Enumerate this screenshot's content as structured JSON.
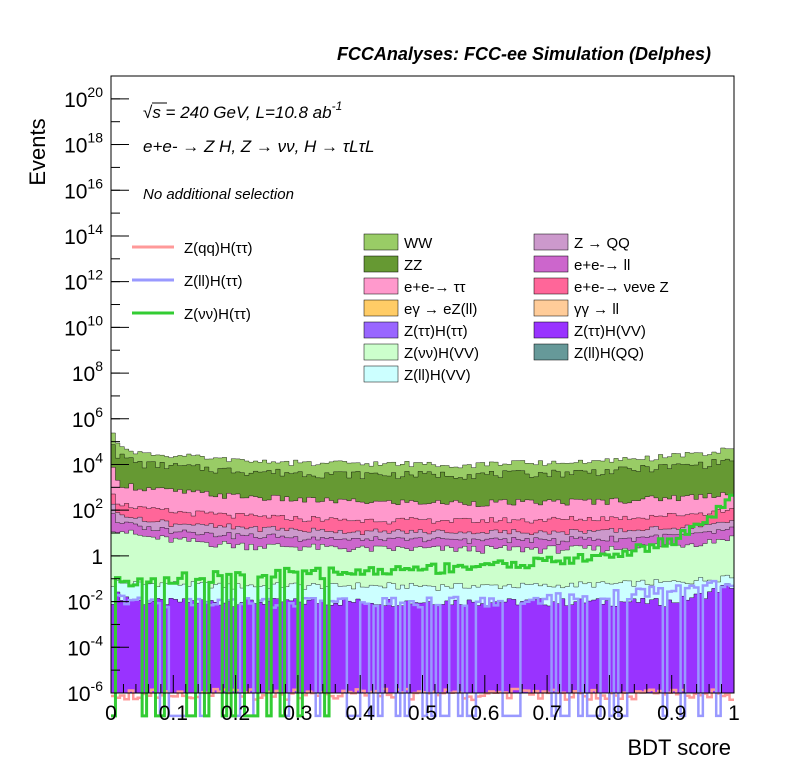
{
  "header": {
    "title": "FCCAnalyses: FCC-ee Simulation (Delphes)"
  },
  "annotations": {
    "line1": "√s = 240 GeV, L=10.8 ab -1",
    "line2": "e+e- → Z H, Z → νν, H → τLτL",
    "line3": "No additional selection"
  },
  "chart_data": {
    "type": "area",
    "title": "FCCAnalyses: FCC-ee Simulation (Delphes)",
    "xlabel": "BDT score",
    "ylabel": "Events",
    "xlim": [
      0,
      1
    ],
    "ylim": [
      1e-06,
      1e+21
    ],
    "yscale": "log",
    "x_ticks": [
      "0",
      "0.1",
      "0.2",
      "0.3",
      "0.4",
      "0.5",
      "0.6",
      "0.7",
      "0.8",
      "0.9",
      "1"
    ],
    "y_ticks": [
      "10^-6",
      "10^-4",
      "10^-2",
      "1",
      "10^2",
      "10^4",
      "10^6",
      "10^8",
      "10^10",
      "10^12",
      "10^14",
      "10^16",
      "10^18",
      "10^20"
    ],
    "x": [
      0.0,
      0.01,
      0.05,
      0.1,
      0.2,
      0.3,
      0.4,
      0.5,
      0.6,
      0.7,
      0.8,
      0.9,
      0.95,
      0.99
    ],
    "stacked_backgrounds": [
      {
        "name": "WW",
        "color": "#99cc66",
        "values": [
          400000,
          50000,
          20000,
          15000,
          10000,
          8000,
          7000,
          7000,
          7000,
          7500,
          9000,
          15000,
          20000,
          30000
        ]
      },
      {
        "name": "ZZ",
        "color": "#669933",
        "values": [
          200000,
          25000,
          10000,
          8000,
          5000,
          4000,
          3500,
          3500,
          3500,
          4000,
          5000,
          8000,
          10000,
          15000
        ]
      },
      {
        "name": "e+e- → ττ",
        "color": "#ff99cc",
        "values": [
          10000,
          1500,
          800,
          600,
          350,
          250,
          200,
          180,
          180,
          190,
          220,
          300,
          350,
          500
        ]
      },
      {
        "name": "e+e- → νeνe Z",
        "color": "#ff6699",
        "values": [
          1000,
          150,
          80,
          60,
          40,
          30,
          25,
          25,
          25,
          28,
          32,
          45,
          55,
          70
        ]
      },
      {
        "name": "Z → QQ",
        "color": "#cc99cc",
        "values": [
          300,
          40,
          20,
          15,
          10,
          8,
          6,
          6,
          6,
          6,
          7,
          9,
          11,
          15
        ]
      },
      {
        "name": "e+e- → ll",
        "color": "#cc66cc",
        "values": [
          150,
          20,
          10,
          8,
          5,
          4,
          3,
          3,
          3,
          3,
          3.5,
          4.5,
          6,
          8
        ]
      },
      {
        "name": "Z(νν)H(VV)",
        "color": "#ccffcc",
        "values": [
          20,
          15,
          7,
          5,
          3,
          2.5,
          2,
          2,
          2,
          2,
          2,
          3,
          4,
          6
        ]
      },
      {
        "name": "Z(ll)H(VV)",
        "color": "#ccffff",
        "values": [
          0.05,
          0.05,
          0.05,
          0.05,
          0.04,
          0.04,
          0.04,
          0.04,
          0.04,
          0.04,
          0.05,
          0.06,
          0.07,
          0.08
        ]
      },
      {
        "name": "Z(ττ)H(VV)",
        "color": "#9933ff",
        "values": [
          0.01,
          0.02,
          0.01,
          0.01,
          0.01,
          0.01,
          0.01,
          0.01,
          0.01,
          0.01,
          0.01,
          0.01,
          0.02,
          0.05
        ]
      }
    ],
    "stack_backgrounds_empty": [
      {
        "name": "eγ → eZ(ll)",
        "color": "#ffcc66"
      },
      {
        "name": "γγ → ll",
        "color": "#ffcc99"
      },
      {
        "name": "Z(ττ)H(ττ)",
        "color": "#9966ff"
      },
      {
        "name": "Z(ll)H(QQ)",
        "color": "#669999"
      }
    ],
    "signals": [
      {
        "name": "Z(qq)H(ττ)",
        "color": "#ff9999",
        "values": [
          1e-06,
          1e-06,
          1e-06,
          1e-06,
          1e-06,
          1e-06,
          1e-06,
          1e-06,
          1e-06,
          1e-06,
          1e-06,
          1e-06,
          1e-06,
          1e-06
        ]
      },
      {
        "name": "Z(ll)H(ττ)",
        "color": "#9999ff",
        "values": [
          0.01,
          0.015,
          0.01,
          0.01,
          0.01,
          0.01,
          0.01,
          0.01,
          0.012,
          0.015,
          0.02,
          0.04,
          0.06,
          0.08
        ]
      },
      {
        "name": "Z(νν)H(ττ)",
        "color": "#33cc33",
        "values": [
          0.04,
          0.08,
          0.1,
          0.12,
          0.15,
          0.2,
          0.2,
          0.3,
          0.4,
          0.6,
          1.0,
          5,
          30,
          300
        ]
      }
    ],
    "legend_left": [
      "Z(qq)H(ττ)",
      "Z(ll)H(ττ)",
      "Z(νν)H(ττ)"
    ],
    "legend_col1": [
      "WW",
      "ZZ",
      "e+e-→ ττ",
      "eγ → eZ(ll)",
      "Z(ττ)H(ττ)",
      "Z(νν)H(VV)",
      "Z(ll)H(VV)"
    ],
    "legend_col2": [
      "Z → QQ",
      "e+e-→ ll",
      "e+e-→ νeνe Z",
      "γγ → ll",
      "Z(ττ)H(VV)",
      "Z(ll)H(QQ)"
    ],
    "legend_colors": {
      "WW": "#99cc66",
      "ZZ": "#669933",
      "e+e-→ ττ": "#ff99cc",
      "eγ → eZ(ll)": "#ffcc66",
      "Z(ττ)H(ττ)": "#9966ff",
      "Z(νν)H(VV)": "#ccffcc",
      "Z(ll)H(VV)": "#ccffff",
      "Z → QQ": "#cc99cc",
      "e+e-→ ll": "#cc66cc",
      "e+e-→ νeνe Z": "#ff6699",
      "γγ → ll": "#ffcc99",
      "Z(ττ)H(VV)": "#9933ff",
      "Z(ll)H(QQ)": "#669999",
      "Z(qq)H(ττ)": "#ff9999",
      "Z(ll)H(ττ)": "#9999ff",
      "Z(νν)H(ττ)": "#33cc33"
    }
  }
}
